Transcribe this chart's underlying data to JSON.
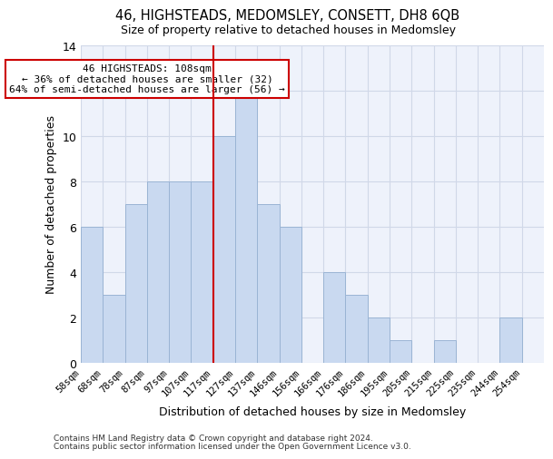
{
  "title1": "46, HIGHSTEADS, MEDOMSLEY, CONSETT, DH8 6QB",
  "title2": "Size of property relative to detached houses in Medomsley",
  "xlabel": "Distribution of detached houses by size in Medomsley",
  "ylabel": "Number of detached properties",
  "bin_labels": [
    "58sqm",
    "68sqm",
    "78sqm",
    "87sqm",
    "97sqm",
    "107sqm",
    "117sqm",
    "127sqm",
    "137sqm",
    "146sqm",
    "156sqm",
    "166sqm",
    "176sqm",
    "186sqm",
    "195sqm",
    "205sqm",
    "215sqm",
    "225sqm",
    "235sqm",
    "244sqm",
    "254sqm"
  ],
  "bar_heights": [
    6,
    3,
    7,
    8,
    8,
    8,
    10,
    12,
    7,
    6,
    0,
    4,
    3,
    2,
    1,
    0,
    1,
    0,
    0,
    2,
    0
  ],
  "bar_color": "#c9d9f0",
  "bar_edge_color": "#9ab4d4",
  "vline_x": 5.5,
  "vline_color": "#cc0000",
  "annotation_text": "46 HIGHSTEADS: 108sqm\n← 36% of detached houses are smaller (32)\n64% of semi-detached houses are larger (56) →",
  "annotation_box_color": "#ffffff",
  "annotation_box_edge": "#cc0000",
  "ylim": [
    0,
    14
  ],
  "yticks": [
    0,
    2,
    4,
    6,
    8,
    10,
    12,
    14
  ],
  "grid_color": "#d0d8e8",
  "background_color": "#eef2fb",
  "footer1": "Contains HM Land Registry data © Crown copyright and database right 2024.",
  "footer2": "Contains public sector information licensed under the Open Government Licence v3.0."
}
